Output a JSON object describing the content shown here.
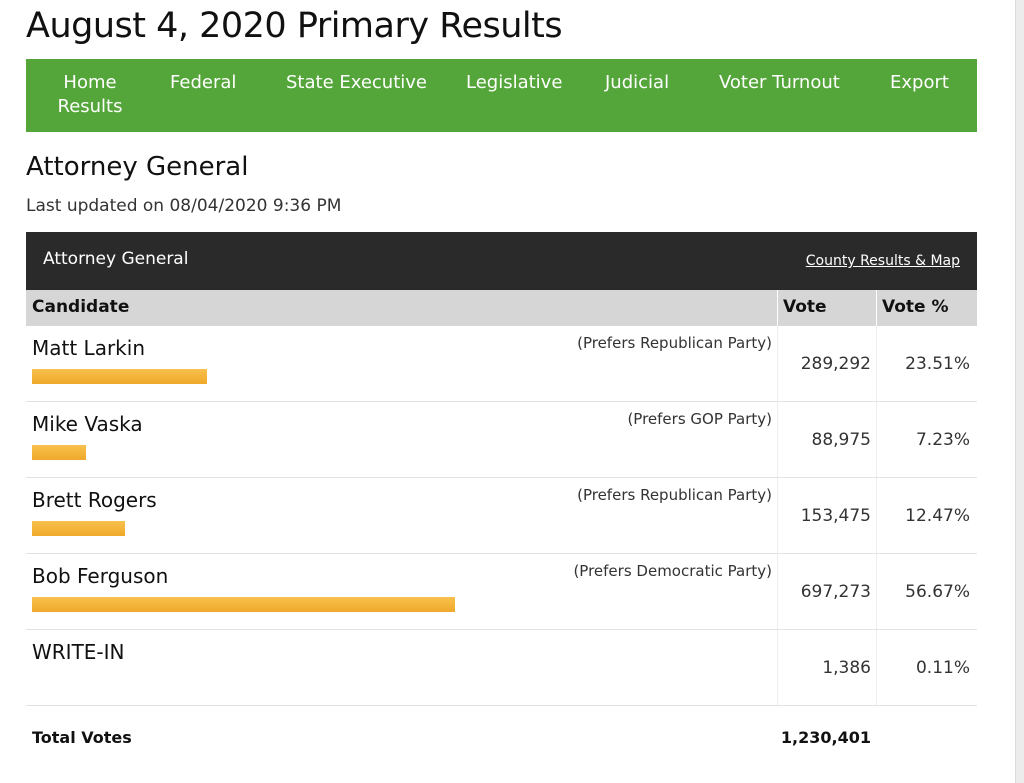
{
  "page": {
    "title": "August 4, 2020 Primary Results"
  },
  "nav": {
    "items": [
      "Home Results",
      "Federal",
      "State Executive",
      "Legislative",
      "Judicial",
      "Voter Turnout",
      "Export"
    ]
  },
  "section": {
    "title": "Attorney General",
    "updated": "Last updated on 08/04/2020 9:36 PM"
  },
  "race": {
    "name": "Attorney General",
    "county_link": "County Results & Map"
  },
  "table": {
    "columns": [
      "Candidate",
      "Vote",
      "Vote %"
    ],
    "rows": [
      {
        "name": "Matt Larkin",
        "party": "(Prefers Republican Party)",
        "votes": "289,292",
        "pct": "23.51%",
        "share": 0.2351
      },
      {
        "name": "Mike Vaska",
        "party": "(Prefers GOP Party)",
        "votes": "88,975",
        "pct": "7.23%",
        "share": 0.0723
      },
      {
        "name": "Brett Rogers",
        "party": "(Prefers Republican Party)",
        "votes": "153,475",
        "pct": "12.47%",
        "share": 0.1247
      },
      {
        "name": "Bob Ferguson",
        "party": "(Prefers Democratic Party)",
        "votes": "697,273",
        "pct": "56.67%",
        "share": 0.5667
      },
      {
        "name": "WRITE-IN",
        "party": "",
        "votes": "1,386",
        "pct": "0.11%",
        "share": 0.0011
      }
    ],
    "total_label": "Total Votes",
    "total_votes": "1,230,401"
  },
  "colors": {
    "nav_green": "#55a63a",
    "header_dark": "#2a2a2a",
    "bar_orange": "#f0a92a"
  }
}
